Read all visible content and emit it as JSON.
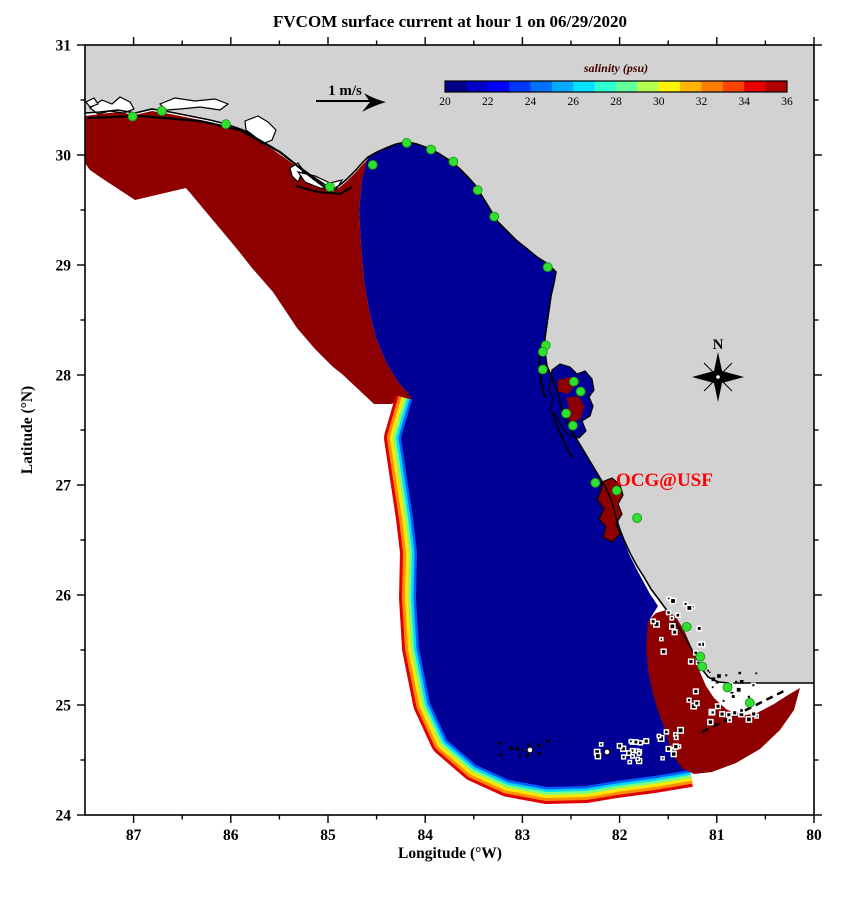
{
  "title": {
    "text": "FVCOM surface current at hour 1 on 06/29/2020"
  },
  "axes": {
    "x": {
      "label": "Longitude (°W)",
      "ticks": [
        87,
        86,
        85,
        84,
        83,
        82,
        81,
        80
      ],
      "range": [
        87.5,
        80
      ]
    },
    "y": {
      "label": "Latitude (°N)",
      "ticks": [
        31,
        30,
        29,
        28,
        27,
        26,
        25,
        24
      ],
      "range": [
        24,
        31
      ]
    }
  },
  "colorbar": {
    "title": "salinity (psu)",
    "ticks": [
      20,
      22,
      24,
      26,
      28,
      30,
      32,
      34,
      36
    ],
    "min": 20,
    "max": 36,
    "segment_colors": [
      "#000089",
      "#0000c8",
      "#0000ff",
      "#0037ff",
      "#0070ff",
      "#00aaff",
      "#00e0ff",
      "#2dffd2",
      "#64ff9b",
      "#b4ff4b",
      "#fdf500",
      "#ffb400",
      "#ff7c00",
      "#ff4300",
      "#e80000",
      "#b00000"
    ]
  },
  "scale_arrow": {
    "label": "1 m/s"
  },
  "compass": {
    "label": "N"
  },
  "annotation": {
    "text": "OCG@USF",
    "color": "#ff0000"
  },
  "map_colors": {
    "land": "#d2d2d2",
    "outside_domain": "#ffffff",
    "low_salinity_water": "#000096",
    "high_salinity_water": "#8e0000",
    "coastline": "#000000",
    "station_marker": "#2fe02f",
    "boundary_band": [
      "#e00000",
      "#ff8c00",
      "#ffe800",
      "#7dff7d",
      "#00d8ff",
      "#0060ff"
    ]
  },
  "chart_data": {
    "type": "heatmap",
    "title": "FVCOM surface current at hour 1 on 06/29/2020",
    "xlabel": "Longitude (°W)",
    "ylabel": "Latitude (°N)",
    "xlim": [
      87.5,
      80
    ],
    "ylim": [
      24,
      31
    ],
    "colorbar": {
      "label": "salinity (psu)",
      "min": 20,
      "max": 36,
      "tick_step": 2,
      "n_segments": 16
    },
    "field_summary": [
      {
        "region": "Panhandle offshore wedge (northwest shelf)",
        "salinity_psu": 36
      },
      {
        "region": "West Florida Shelf interior",
        "salinity_psu": 20
      },
      {
        "region": "Southwest open-boundary transition band",
        "salinity_psu": "20 to 36 rainbow gradient"
      },
      {
        "region": "Florida Bay / Keys crescent (southeast)",
        "salinity_psu": 36
      },
      {
        "region": "Tampa Bay and Charlotte Harbor patches",
        "salinity_psu": 36
      }
    ],
    "stations": [
      [
        87.01,
        30.35
      ],
      [
        86.71,
        30.4
      ],
      [
        86.05,
        30.28
      ],
      [
        84.98,
        29.71
      ],
      [
        84.54,
        29.91
      ],
      [
        84.19,
        30.11
      ],
      [
        83.94,
        30.05
      ],
      [
        83.71,
        29.94
      ],
      [
        83.46,
        29.68
      ],
      [
        83.29,
        29.44
      ],
      [
        82.74,
        28.98
      ],
      [
        82.76,
        28.27
      ],
      [
        82.79,
        28.21
      ],
      [
        82.79,
        28.05
      ],
      [
        82.47,
        27.94
      ],
      [
        82.4,
        27.85
      ],
      [
        82.55,
        27.65
      ],
      [
        82.48,
        27.54
      ],
      [
        82.25,
        27.02
      ],
      [
        82.03,
        26.95
      ],
      [
        81.82,
        26.7
      ],
      [
        81.31,
        25.71
      ],
      [
        81.17,
        25.44
      ],
      [
        81.15,
        25.35
      ],
      [
        80.89,
        25.16
      ],
      [
        80.66,
        25.02
      ]
    ]
  }
}
